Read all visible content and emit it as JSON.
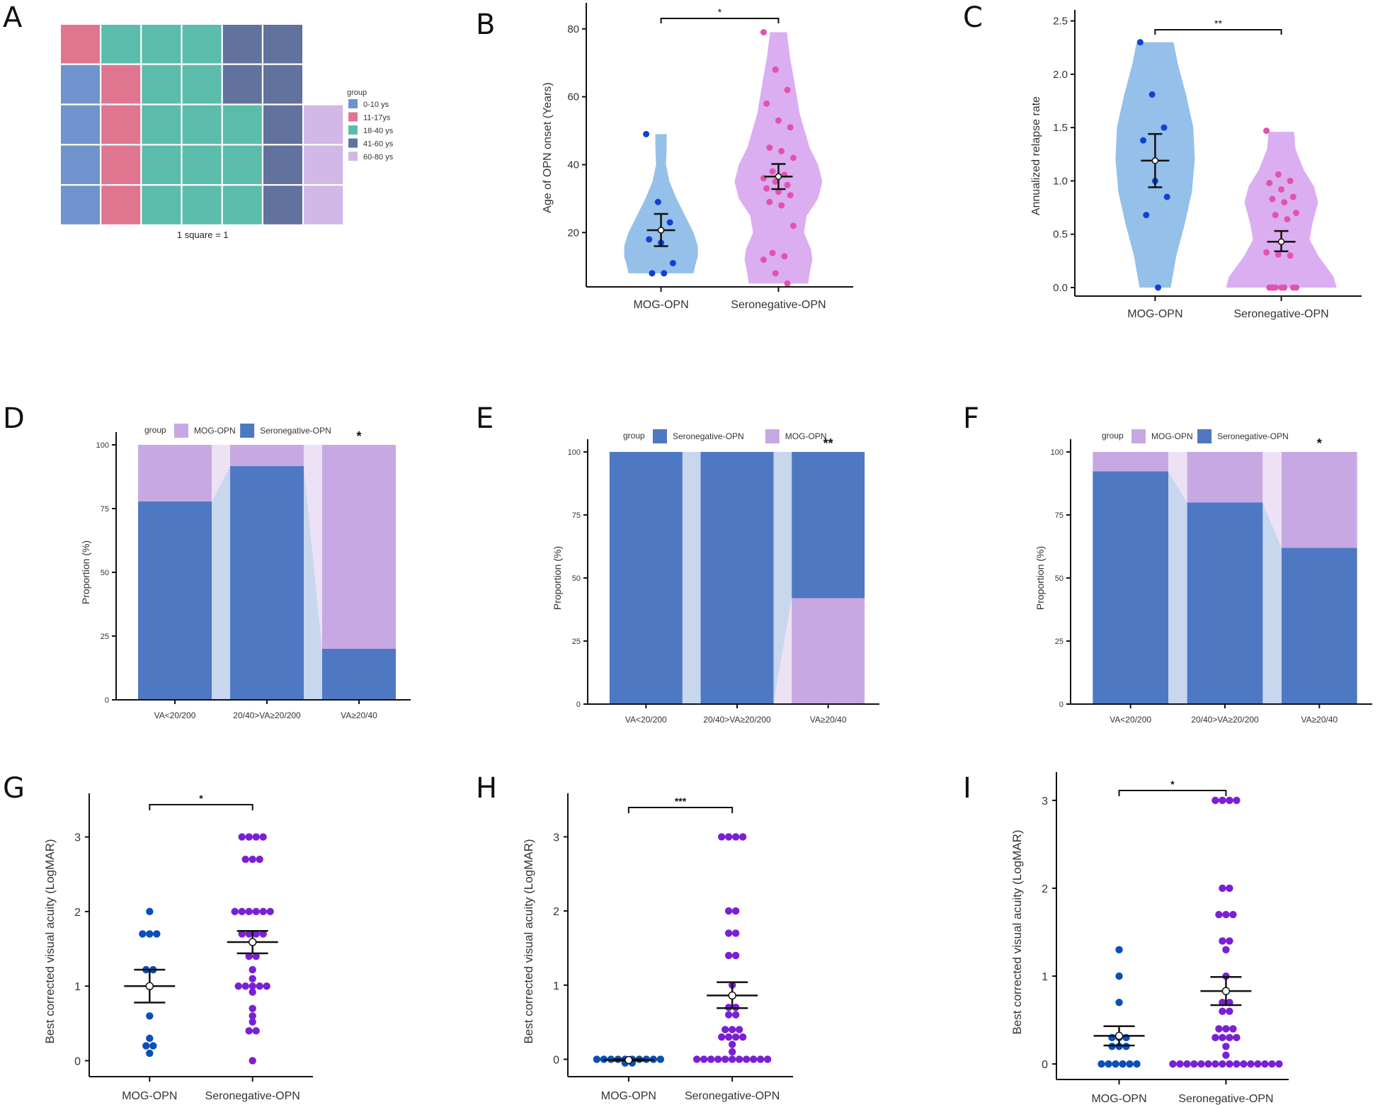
{
  "figure": {
    "panel_letters": [
      "A",
      "B",
      "C",
      "D",
      "E",
      "F",
      "G",
      "H",
      "I"
    ]
  },
  "colors": {
    "age_0_10": "#6f93cc",
    "age_11_17": "#e07590",
    "age_18_40": "#5bbcab",
    "age_41_60": "#61729e",
    "age_60_80": "#d2b8e6",
    "mog_violin": "#8fbde8",
    "mog_point": "#1140d6",
    "sero_violin": "#d9aaf0",
    "sero_point": "#e352ad",
    "prop_sero": "#4e79c2",
    "prop_mog": "#c8a8e2",
    "flow_sero": "#c8d7ee",
    "flow_mog": "#ede2f5",
    "dot_mog": "#0b4fb8",
    "dot_sero": "#7a1fd6"
  },
  "chart_data": [
    {
      "panel": "A",
      "type": "heatmap",
      "subtype": "waffle",
      "caption": "1 square = 1",
      "legend_title": "group",
      "legend": [
        {
          "key": "age_0_10",
          "label": "0-10 ys",
          "count": 4
        },
        {
          "key": "age_11_17",
          "label": "11-17ys",
          "count": 5
        },
        {
          "key": "age_18_40",
          "label": "18-40 ys",
          "count": 14
        },
        {
          "key": "age_41_60",
          "label": "41-60 ys",
          "count": 7
        },
        {
          "key": "age_60_80",
          "label": "60-80 ys",
          "count": 3
        }
      ],
      "columns": [
        [
          "age_11_17",
          "age_0_10",
          "age_0_10",
          "age_0_10",
          "age_0_10"
        ],
        [
          "age_18_40",
          "age_11_17",
          "age_11_17",
          "age_11_17",
          "age_11_17"
        ],
        [
          "age_18_40",
          "age_18_40",
          "age_18_40",
          "age_18_40",
          "age_18_40"
        ],
        [
          "age_18_40",
          "age_18_40",
          "age_18_40",
          "age_18_40",
          "age_18_40"
        ],
        [
          "age_41_60",
          "age_41_60",
          "age_18_40",
          "age_18_40",
          "age_18_40"
        ],
        [
          "age_41_60",
          "age_41_60",
          "age_41_60",
          "age_41_60",
          "age_41_60"
        ],
        [
          null,
          null,
          "age_60_80",
          "age_60_80",
          "age_60_80"
        ]
      ]
    },
    {
      "panel": "B",
      "type": "scatter",
      "subtype": "violin",
      "ylabel": "Age of OPN onset (Years)",
      "ylim": [
        4,
        86
      ],
      "yticks": [
        20,
        40,
        60,
        80
      ],
      "categories": [
        "MOG-OPN",
        "Seronegative-OPN"
      ],
      "significance": "*",
      "groups": [
        {
          "name": "MOG-OPN",
          "points": [
            49,
            29,
            23,
            18,
            17,
            11,
            8,
            8
          ],
          "mean": 20.7,
          "ci": [
            16,
            25.5
          ],
          "violin_range": [
            8,
            49
          ]
        },
        {
          "name": "Seronegative-OPN",
          "points": [
            79,
            68,
            62,
            58,
            53,
            51,
            45,
            44,
            42,
            38,
            37,
            36,
            35,
            34,
            33,
            32,
            31,
            29,
            28,
            22,
            14,
            13,
            12,
            8,
            5
          ],
          "mean": 36.5,
          "ci": [
            32.8,
            40.2
          ],
          "violin_range": [
            5,
            79
          ]
        }
      ]
    },
    {
      "panel": "C",
      "type": "scatter",
      "subtype": "violin",
      "ylabel": "Annualized relapse rate",
      "ylim": [
        -0.08,
        2.55
      ],
      "yticks": [
        "0.0",
        "0.5",
        "1.0",
        "1.5",
        "2.0",
        "2.5"
      ],
      "categories": [
        "MOG-OPN",
        "Seronegative-OPN"
      ],
      "significance": "**",
      "groups": [
        {
          "name": "MOG-OPN",
          "points": [
            2.3,
            1.81,
            1.5,
            1.38,
            1.0,
            0.85,
            0.68,
            0.0
          ],
          "mean": 1.19,
          "ci": [
            0.94,
            1.44
          ],
          "violin_range": [
            0,
            2.3
          ]
        },
        {
          "name": "Seronegative-OPN",
          "points": [
            1.47,
            1.06,
            1.0,
            0.98,
            0.92,
            0.85,
            0.83,
            0.8,
            0.7,
            0.68,
            0.64,
            0.33,
            0.31,
            0.3,
            0,
            0,
            0,
            0,
            0,
            0,
            0
          ],
          "mean": 0.43,
          "ci": [
            0.34,
            0.53
          ],
          "violin_range": [
            0,
            1.46
          ]
        }
      ]
    },
    {
      "panel": "D",
      "type": "bar",
      "subtype": "stacked-alluvial",
      "ylabel": "Proportion (%)",
      "ylim": [
        0,
        100
      ],
      "yticks": [
        0,
        25,
        50,
        75,
        100
      ],
      "legend_title": "group",
      "legend_order": [
        "MOG-OPN",
        "Seronegative-OPN"
      ],
      "categories": [
        "VA<20/200",
        "20/40>VA≥20/200",
        "VA≥20/40"
      ],
      "bottom_series": "Seronegative-OPN",
      "series": [
        {
          "name": "Seronegative-OPN",
          "values": [
            77.8,
            91.7,
            20
          ]
        },
        {
          "name": "MOG-OPN",
          "values": [
            22.2,
            8.3,
            80
          ]
        }
      ],
      "annotations": [
        {
          "category": "VA≥20/40",
          "text": "*"
        }
      ]
    },
    {
      "panel": "E",
      "type": "bar",
      "subtype": "stacked-alluvial",
      "ylabel": "Proportion (%)",
      "ylim": [
        0,
        100
      ],
      "yticks": [
        0,
        25,
        50,
        75,
        100
      ],
      "legend_title": "group",
      "legend_order": [
        "Seronegative-OPN",
        "MOG-OPN"
      ],
      "categories": [
        "VA<20/200",
        "20/40>VA≥20/200",
        "VA≥20/40"
      ],
      "bottom_series": "MOG-OPN",
      "series": [
        {
          "name": "MOG-OPN",
          "values": [
            0,
            0,
            42
          ]
        },
        {
          "name": "Seronegative-OPN",
          "values": [
            100,
            100,
            58
          ]
        }
      ],
      "annotations": [
        {
          "category": "VA≥20/40",
          "text": "**"
        }
      ]
    },
    {
      "panel": "F",
      "type": "bar",
      "subtype": "stacked-alluvial",
      "ylabel": "Proportion (%)",
      "ylim": [
        0,
        100
      ],
      "yticks": [
        0,
        25,
        50,
        75,
        100
      ],
      "legend_title": "group",
      "legend_order": [
        "MOG-OPN",
        "Seronegative-OPN"
      ],
      "categories": [
        "VA<20/200",
        "20/40>VA≥20/200",
        "VA≥20/40"
      ],
      "bottom_series": "Seronegative-OPN",
      "series": [
        {
          "name": "Seronegative-OPN",
          "values": [
            92.3,
            80,
            62
          ]
        },
        {
          "name": "MOG-OPN",
          "values": [
            7.7,
            20,
            38
          ]
        }
      ],
      "annotations": [
        {
          "category": "VA≥20/40",
          "text": "*"
        }
      ]
    },
    {
      "panel": "G",
      "type": "scatter",
      "subtype": "dotplot",
      "ylabel": "Best corrected visual acuity (LogMAR)",
      "ylim": [
        -0.1,
        3.3
      ],
      "yticks": [
        0,
        1,
        2,
        3
      ],
      "categories": [
        "MOG-OPN",
        "Seronegative-OPN"
      ],
      "significance": "*",
      "groups": [
        {
          "name": "MOG-OPN",
          "points": [
            2.0,
            1.7,
            1.7,
            1.7,
            1.22,
            1.22,
            0.6,
            0.3,
            0.2,
            0.2,
            0.1
          ],
          "mean": 1.0,
          "ci": [
            0.78,
            1.22
          ]
        },
        {
          "name": "Seronegative-OPN",
          "points": [
            3,
            3,
            3,
            3,
            2.7,
            2.7,
            2.7,
            2,
            2,
            2,
            2,
            2,
            2,
            1.7,
            1.7,
            1.7,
            1.7,
            1.4,
            1.4,
            1.22,
            1.1,
            1.0,
            1.0,
            1.0,
            1.0,
            1.0,
            0.92,
            0.7,
            0.6,
            0.52,
            0.4,
            0.4,
            0.0
          ],
          "mean": 1.59,
          "ci": [
            1.44,
            1.74
          ]
        }
      ]
    },
    {
      "panel": "H",
      "type": "scatter",
      "subtype": "dotplot",
      "ylabel": "Best corrected visual acuity (LogMAR)",
      "ylim": [
        -0.12,
        3.3
      ],
      "yticks": [
        0,
        1,
        2,
        3
      ],
      "categories": [
        "MOG-OPN",
        "Seronegative-OPN"
      ],
      "significance": "***",
      "groups": [
        {
          "name": "MOG-OPN",
          "points": [
            0,
            0,
            0,
            0,
            0,
            0,
            0,
            0,
            0,
            0,
            -0.05,
            -0.05
          ],
          "mean": -0.01,
          "ci": [
            -0.02,
            0.0
          ]
        },
        {
          "name": "Seronegative-OPN",
          "points": [
            3,
            3,
            3,
            3,
            2,
            2,
            1.7,
            1.7,
            1.4,
            1.4,
            1.0,
            0.7,
            0.7,
            0.6,
            0.6,
            0.4,
            0.4,
            0.4,
            0.3,
            0.3,
            0.3,
            0.3,
            0.2,
            0.1,
            0,
            0,
            0,
            0,
            0,
            0,
            0,
            0,
            0,
            0,
            0
          ],
          "mean": 0.86,
          "ci": [
            0.69,
            1.04
          ]
        }
      ]
    },
    {
      "panel": "I",
      "type": "scatter",
      "subtype": "dotplot",
      "ylabel": "Best corrected visual acuity (LogMAR)",
      "ylim": [
        -0.08,
        3.08
      ],
      "yticks": [
        0,
        1,
        2,
        3
      ],
      "categories": [
        "MOG-OPN",
        "Seronegative-OPN"
      ],
      "significance": "*",
      "groups": [
        {
          "name": "MOG-OPN",
          "points": [
            1.3,
            1.0,
            0.7,
            0.3,
            0.3,
            0.3,
            0.2,
            0.2,
            0.2,
            0,
            0,
            0,
            0,
            0,
            0
          ],
          "mean": 0.32,
          "ci": [
            0.21,
            0.43
          ]
        },
        {
          "name": "Seronegative-OPN",
          "points": [
            3,
            3,
            3,
            3,
            2,
            2,
            1.7,
            1.7,
            1.7,
            1.4,
            1.4,
            1.3,
            1.0,
            0.7,
            0.7,
            0.6,
            0.6,
            0.4,
            0.4,
            0.4,
            0.3,
            0.3,
            0.3,
            0.3,
            0.2,
            0.1,
            0,
            0,
            0,
            0,
            0,
            0,
            0,
            0,
            0,
            0,
            0,
            0,
            0,
            0,
            0,
            0
          ],
          "mean": 0.83,
          "ci": [
            0.67,
            0.99
          ]
        }
      ]
    }
  ]
}
